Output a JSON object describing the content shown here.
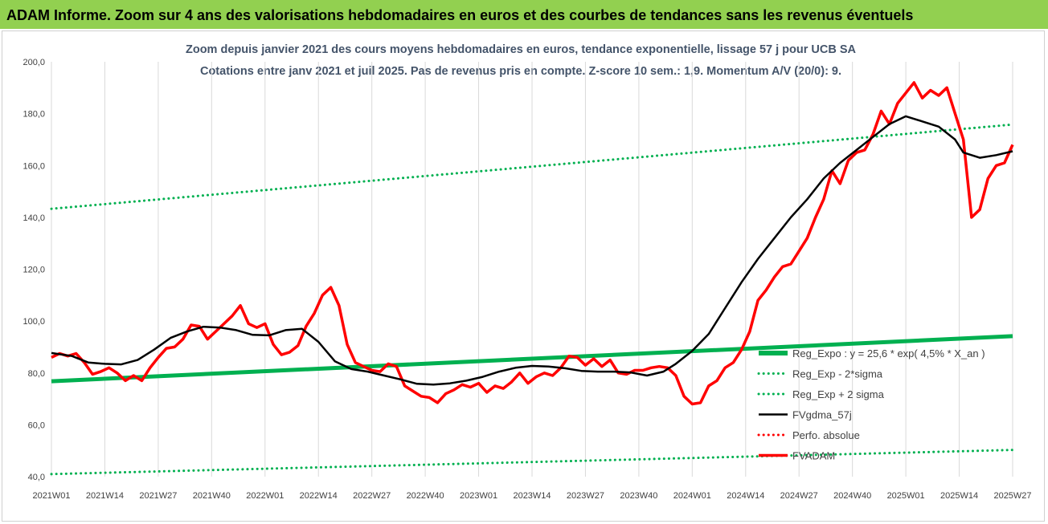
{
  "banner": {
    "title": "ADAM Informe. Zoom sur 4 ans des valorisations hebdomadaires en euros et des courbes de tendances sans les revenus éventuels"
  },
  "chart_data": {
    "type": "line",
    "title": "Zoom depuis janvier 2021 des cours moyens hebdomadaires en euros, tendance exponentielle, lissage 57 j pour UCB SA",
    "subtitle": "Cotations entre janv 2021 et juil 2025. Pas de revenus pris en compte. Z-score 10 sem.: 1,9. Momentum A/V (20/0): 9.",
    "xlabel": "",
    "ylabel": "",
    "ylim": [
      40,
      200
    ],
    "yticks": [
      40,
      60,
      80,
      100,
      120,
      140,
      160,
      180,
      200
    ],
    "ytick_labels": [
      "40,0",
      "60,0",
      "80,0",
      "100,0",
      "120,0",
      "140,0",
      "160,0",
      "180,0",
      "200,0"
    ],
    "xlim": [
      0,
      234
    ],
    "xticks": [
      0,
      13,
      26,
      39,
      52,
      65,
      78,
      91,
      104,
      117,
      130,
      143,
      156,
      169,
      182,
      195,
      208,
      221,
      234
    ],
    "xtick_labels": [
      "2021W01",
      "2021W14",
      "2021W27",
      "2021W40",
      "2022W01",
      "2022W14",
      "2022W27",
      "2022W40",
      "2023W01",
      "2023W14",
      "2023W27",
      "2023W40",
      "2024W01",
      "2024W14",
      "2024W27",
      "2024W40",
      "2025W01",
      "2025W14",
      "2025W27"
    ],
    "grid": "vertical",
    "legend_position": "bottom-right",
    "series": [
      {
        "name": "Reg_Expo : y = 25,6 * exp( 4,5% * X_an )",
        "color": "#00b050",
        "style": "solid-thick",
        "x": [
          0,
          234
        ],
        "y": [
          76.8,
          94.2
        ]
      },
      {
        "name": "Reg_Exp - 2*sigma",
        "color": "#00b050",
        "style": "dotted",
        "x": [
          0,
          234
        ],
        "y": [
          41.0,
          50.3
        ]
      },
      {
        "name": "Reg_Exp + 2 sigma",
        "color": "#00b050",
        "style": "dotted",
        "x": [
          0,
          234
        ],
        "y": [
          143.3,
          175.8
        ]
      },
      {
        "name": "FVgdma_57j",
        "color": "#000000",
        "style": "solid",
        "x": [
          0,
          5,
          9,
          13,
          17,
          21,
          25,
          29,
          33,
          37,
          41,
          45,
          49,
          53,
          57,
          61,
          65,
          69,
          73,
          77,
          81,
          85,
          89,
          93,
          97,
          101,
          105,
          109,
          113,
          117,
          121,
          125,
          129,
          133,
          137,
          141,
          145,
          149,
          152,
          156,
          160,
          164,
          168,
          172,
          176,
          180,
          184,
          188,
          192,
          196,
          200,
          204,
          208,
          212,
          216,
          220,
          222,
          226,
          230,
          234
        ],
        "y": [
          87.7,
          86.5,
          84,
          83.5,
          83.3,
          85,
          89,
          93.5,
          96,
          97.8,
          97.5,
          96.5,
          94.7,
          94.5,
          96.5,
          97,
          92,
          84.5,
          81.5,
          80.5,
          79,
          77.5,
          75.8,
          75.5,
          76,
          77,
          78.5,
          80.5,
          82,
          82.7,
          82.5,
          81.8,
          80.8,
          80.5,
          80.5,
          80.2,
          79,
          80.5,
          83.5,
          88.5,
          95,
          105,
          115,
          124,
          132,
          140,
          147,
          155,
          161,
          166,
          171,
          176,
          179,
          177,
          175,
          170,
          165,
          163,
          164,
          165.5
        ]
      },
      {
        "name": "Perfo. absolue",
        "color": "#ff0000",
        "style": "dotted",
        "x": [],
        "y": []
      },
      {
        "name": "FVADAM",
        "color": "#ff0000",
        "style": "solid-thick",
        "x": [
          0,
          2,
          4,
          6,
          8,
          10,
          12,
          14,
          16,
          18,
          20,
          22,
          24,
          26,
          28,
          30,
          32,
          34,
          36,
          38,
          40,
          42,
          44,
          46,
          48,
          50,
          52,
          54,
          56,
          58,
          60,
          62,
          64,
          66,
          68,
          70,
          72,
          74,
          76,
          78,
          80,
          82,
          84,
          86,
          88,
          90,
          92,
          94,
          96,
          98,
          100,
          102,
          104,
          106,
          108,
          110,
          112,
          114,
          116,
          118,
          120,
          122,
          124,
          126,
          128,
          130,
          132,
          134,
          136,
          138,
          140,
          142,
          144,
          146,
          148,
          150,
          152,
          154,
          156,
          158,
          160,
          162,
          164,
          166,
          168,
          170,
          172,
          174,
          176,
          178,
          180,
          182,
          184,
          186,
          188,
          190,
          192,
          194,
          196,
          198,
          200,
          202,
          204,
          206,
          208,
          210,
          212,
          214,
          216,
          218,
          220,
          222,
          224,
          226,
          228,
          230,
          232,
          234
        ],
        "y": [
          86,
          87.5,
          86.5,
          87.5,
          84,
          79.5,
          80.5,
          82,
          80,
          77,
          79,
          77,
          82,
          86,
          89.5,
          90,
          93,
          98.5,
          98,
          93,
          96,
          99,
          102,
          106,
          99,
          97.5,
          99,
          91,
          87,
          88,
          90.5,
          98,
          103,
          110,
          113,
          106,
          91,
          84,
          82.5,
          81,
          80.5,
          83.5,
          82.5,
          75,
          73,
          71,
          70.5,
          68.5,
          72,
          73.5,
          75.5,
          74.5,
          76,
          72.5,
          75,
          74,
          76.5,
          80,
          76,
          78.5,
          80,
          79,
          82,
          86.5,
          86,
          83,
          85.5,
          82.5,
          85,
          80,
          79.5,
          81,
          81,
          82,
          82.5,
          82,
          79,
          71,
          68,
          68.5,
          75,
          77,
          82,
          84,
          89,
          96,
          108,
          112,
          117,
          121,
          122,
          127,
          132,
          140,
          147,
          158,
          153,
          162,
          165,
          166,
          172,
          181,
          176,
          184,
          188,
          192,
          186,
          189,
          187,
          190,
          180,
          170,
          140,
          143,
          155,
          160,
          161,
          168
        ]
      }
    ]
  }
}
